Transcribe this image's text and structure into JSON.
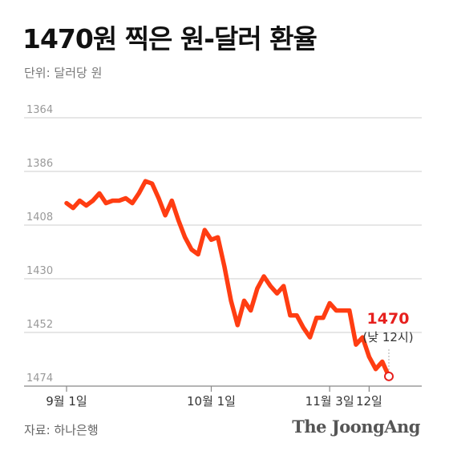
{
  "chart_data": {
    "type": "line",
    "title": "1470원 찍은 원-달러 환율",
    "unit_label": "단위: 달러당 원",
    "y_ticks": [
      1364,
      1386,
      1408,
      1430,
      1452,
      1474
    ],
    "ylim": [
      1364,
      1474
    ],
    "y_inverted": true,
    "x_labels": [
      {
        "label": "9월 1일",
        "index": 0
      },
      {
        "label": "10월 1일",
        "index": 22
      },
      {
        "label": "11월 3일",
        "index": 40
      },
      {
        "label": "12일",
        "index": 46
      }
    ],
    "series": [
      {
        "values": [
          1399,
          1401,
          1398,
          1400,
          1398,
          1395,
          1399,
          1398,
          1398,
          1397,
          1399,
          1395,
          1390,
          1391,
          1397,
          1404,
          1398,
          1406,
          1413,
          1418,
          1420,
          1410,
          1414,
          1413,
          1425,
          1439,
          1449,
          1439,
          1443,
          1434,
          1429,
          1433,
          1436,
          1433,
          1445,
          1445,
          1450,
          1454,
          1446,
          1446,
          1440,
          1443,
          1443,
          1443,
          1457,
          1454,
          1462,
          1467,
          1464,
          1470
        ]
      }
    ],
    "annotation": {
      "value": "1470",
      "note": "(낮 12시)"
    }
  },
  "colors": {
    "line": "#ff3d12",
    "annotation": "#e6201e",
    "grid": "#cccccc"
  },
  "footer": {
    "source": "자료: 하나은행",
    "brand": "The JoongAng"
  }
}
